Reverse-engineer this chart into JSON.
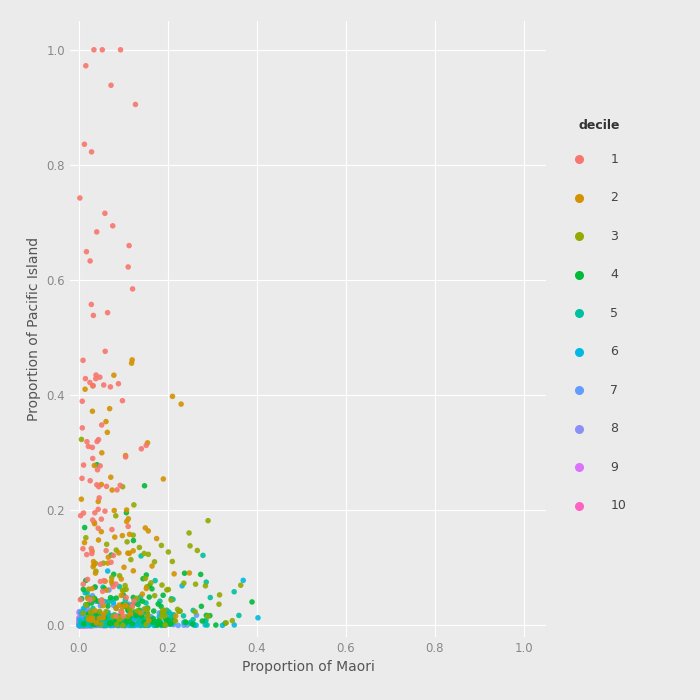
{
  "title": "",
  "xlabel": "Proportion of Maori",
  "ylabel": "Proportion of Pacific Island",
  "xlim": [
    -0.02,
    1.05
  ],
  "ylim": [
    -0.02,
    1.05
  ],
  "xticks": [
    0.0,
    0.2,
    0.4,
    0.6,
    0.8,
    1.0
  ],
  "yticks": [
    0.0,
    0.2,
    0.4,
    0.6,
    0.8,
    1.0
  ],
  "background_color": "#EBEBEB",
  "panel_color": "#EBEBEB",
  "grid_color": "#FFFFFF",
  "legend_title": "decile",
  "decile_colors": {
    "1": "#F8766D",
    "2": "#D39200",
    "3": "#93AA00",
    "4": "#00BA38",
    "5": "#00C19F",
    "6": "#00B9E3",
    "7": "#619CFF",
    "8": "#8B8FF8",
    "9": "#DB72FB",
    "10": "#FF61C3"
  },
  "marker_size": 16,
  "alpha": 0.9,
  "axis_label_fontsize": 10,
  "tick_fontsize": 8.5,
  "legend_fontsize": 9,
  "legend_title_fontsize": 9,
  "n_per_decile": {
    "1": 90,
    "2": 80,
    "3": 90,
    "4": 100,
    "5": 90,
    "6": 80,
    "7": 90,
    "8": 100,
    "9": 90,
    "10": 90
  }
}
